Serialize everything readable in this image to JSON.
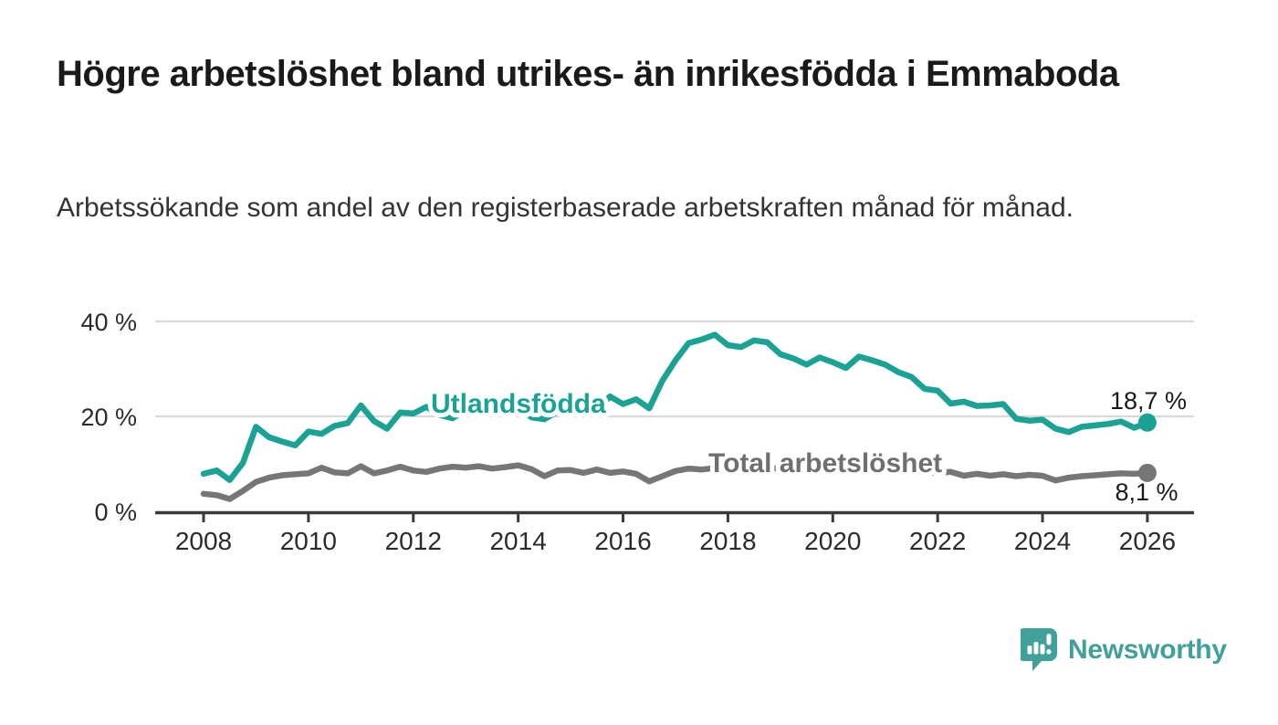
{
  "header": {
    "title": "Högre arbetslöshet bland utrikes- än inrikesfödda i Emmaboda",
    "subtitle": "Arbetssökande som andel av den registerbaserade arbetskraften månad för månad."
  },
  "chart_data": {
    "type": "line",
    "title": "Högre arbetslöshet bland utrikes- än inrikesfödda i Emmaboda",
    "subtitle": "Arbetssökande som andel av den registerbaserade arbetskraften månad för månad.",
    "unit": "%",
    "grid": "horizontal",
    "legend_position": "inline-labels",
    "x_start": 2008,
    "x_step_years": 0.25,
    "x_end": 2026,
    "xlim": [
      2007.1,
      2026.9
    ],
    "ylim": [
      0,
      44
    ],
    "x_tick_labels": [
      "2008",
      "2010",
      "2012",
      "2014",
      "2016",
      "2018",
      "2020",
      "2022",
      "2024",
      "2026"
    ],
    "y_ticks": [
      {
        "value": 0,
        "label": "0 %"
      },
      {
        "value": 20,
        "label": "20 %"
      },
      {
        "value": 40,
        "label": "40 %"
      }
    ],
    "axis_color": "#3a3a3a",
    "gridline_color": "#d8d8d8",
    "series": [
      {
        "id": "utlandsfodda",
        "name": "Utlandsfödda",
        "color": "#1aa294",
        "label_color": "#1aa294",
        "end_value": 18.7,
        "end_label": "18,7 %",
        "values": [
          7.9,
          8.6,
          6.6,
          10.2,
          17.8,
          15.6,
          14.7,
          13.9,
          16.8,
          16.3,
          18.0,
          18.6,
          22.3,
          19.0,
          17.4,
          20.8,
          20.6,
          22.0,
          20.3,
          19.6,
          21.5,
          22.0,
          20.9,
          21.4,
          22.3,
          19.8,
          19.4,
          21.0,
          21.2,
          20.4,
          21.3,
          24.2,
          22.6,
          23.6,
          21.7,
          27.5,
          31.8,
          35.4,
          36.2,
          37.2,
          35.0,
          34.6,
          36.0,
          35.6,
          33.1,
          32.2,
          30.9,
          32.4,
          31.4,
          30.2,
          32.6,
          31.8,
          30.9,
          29.3,
          28.3,
          25.8,
          25.4,
          22.7,
          23.1,
          22.2,
          22.3,
          22.6,
          19.5,
          19.1,
          19.3,
          17.4,
          16.7,
          17.8,
          18.1,
          18.4,
          18.9,
          17.6,
          18.7
        ]
      },
      {
        "id": "total-arbetsloshet",
        "name": "Total arbetslöshet",
        "color": "#767676",
        "label_color": "#6f6f6f",
        "end_value": 8.1,
        "end_label": "8,1 %",
        "values": [
          3.7,
          3.4,
          2.6,
          4.3,
          6.2,
          7.1,
          7.6,
          7.8,
          8.0,
          9.2,
          8.2,
          8.0,
          9.5,
          8.0,
          8.6,
          9.4,
          8.6,
          8.3,
          9.0,
          9.4,
          9.2,
          9.5,
          9.0,
          9.3,
          9.7,
          8.9,
          7.4,
          8.6,
          8.7,
          8.1,
          8.8,
          8.1,
          8.4,
          7.9,
          6.3,
          7.4,
          8.5,
          9.0,
          8.8,
          9.1,
          9.0,
          9.3,
          9.1,
          9.2,
          9.0,
          8.8,
          8.6,
          8.8,
          8.7,
          9.4,
          9.6,
          9.2,
          9.0,
          8.7,
          8.5,
          8.3,
          8.1,
          8.3,
          7.5,
          7.9,
          7.5,
          7.8,
          7.4,
          7.7,
          7.5,
          6.5,
          7.1,
          7.4,
          7.6,
          7.8,
          8.0,
          7.9,
          8.1
        ]
      }
    ]
  },
  "footer": {
    "brand": "Newsworthy",
    "brand_color": "#41a09a"
  }
}
